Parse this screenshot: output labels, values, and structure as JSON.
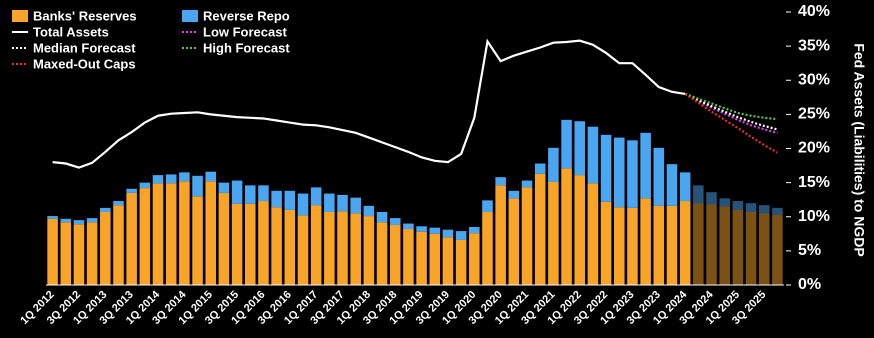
{
  "chart_data": {
    "type": "combo",
    "y_axis_label": "Fed Assets (Liabilities) to NGDP",
    "categories": [
      "1Q 2012",
      null,
      "3Q 2012",
      null,
      "1Q 2013",
      null,
      "3Q 2013",
      null,
      "1Q 2014",
      null,
      "3Q 2014",
      null,
      "1Q 2015",
      null,
      "3Q 2015",
      null,
      "1Q 2016",
      null,
      "3Q 2016",
      null,
      "1Q 2017",
      null,
      "3Q 2017",
      null,
      "1Q 2018",
      null,
      "3Q 2018",
      null,
      "1Q 2019",
      null,
      "3Q 2019",
      null,
      "1Q 2020",
      null,
      "3Q 2020",
      null,
      "1Q 2021",
      null,
      "3Q 2021",
      null,
      "1Q 2022",
      null,
      "3Q 2022",
      null,
      "1Q 2023",
      null,
      "3Q 2023",
      null,
      "1Q 2024",
      null,
      "3Q 2024",
      null,
      "1Q 2025",
      null,
      "3Q 2025",
      null
    ],
    "ylim": [
      0,
      40
    ],
    "yticks": [
      {
        "value": 0,
        "label": "0%"
      },
      {
        "value": 5,
        "label": "5%"
      },
      {
        "value": 10,
        "label": "10%"
      },
      {
        "value": 15,
        "label": "15%"
      },
      {
        "value": 20,
        "label": "20%"
      },
      {
        "value": 25,
        "label": "25%"
      },
      {
        "value": 30,
        "label": "30%"
      },
      {
        "value": 35,
        "label": "35%"
      },
      {
        "value": 40,
        "label": "40%"
      }
    ],
    "grid": false,
    "legend": "top-left",
    "series": [
      {
        "name": "Banks' Reserves",
        "type": "bar",
        "color": "#f7a428",
        "values": [
          9.7,
          9.2,
          8.9,
          9.2,
          10.7,
          11.7,
          13.5,
          14.2,
          14.9,
          14.9,
          15.2,
          13.0,
          15.2,
          13.5,
          11.9,
          11.9,
          12.3,
          11.4,
          11.0,
          10.2,
          11.7,
          10.7,
          10.8,
          10.5,
          10.1,
          9.2,
          8.8,
          8.2,
          7.8,
          7.5,
          7.0,
          6.6,
          7.6,
          10.7,
          14.6,
          12.7,
          14.3,
          16.3,
          15.1,
          17.1,
          16.1,
          14.9,
          12.2,
          11.4,
          11.3,
          12.7,
          11.6,
          11.6,
          12.3,
          12.0,
          11.8,
          11.5,
          11.0,
          10.7,
          10.5,
          10.3
        ]
      },
      {
        "name": "Reverse Repo",
        "type": "bar",
        "color": "#4ba6f2",
        "values": [
          0.4,
          0.5,
          0.6,
          0.6,
          0.6,
          0.6,
          0.6,
          0.8,
          1.2,
          1.3,
          1.3,
          3.0,
          1.4,
          1.5,
          3.4,
          2.7,
          2.3,
          2.4,
          2.8,
          3.2,
          2.6,
          2.7,
          2.4,
          2.3,
          1.5,
          1.5,
          1.0,
          0.8,
          0.8,
          0.9,
          1.1,
          1.3,
          0.9,
          1.7,
          1.2,
          1.1,
          1.0,
          1.5,
          5.0,
          7.1,
          7.9,
          8.3,
          9.8,
          10.2,
          9.9,
          9.6,
          8.5,
          6.1,
          4.2,
          2.6,
          1.8,
          1.2,
          1.3,
          1.3,
          1.2,
          1.0
        ]
      },
      {
        "name": "Total Assets",
        "type": "line",
        "color": "#ffffff",
        "dash": "none",
        "values": [
          18.0,
          17.8,
          17.2,
          17.9,
          19.5,
          21.2,
          22.4,
          23.8,
          24.8,
          25.1,
          25.2,
          25.3,
          25.0,
          24.8,
          24.6,
          24.5,
          24.4,
          24.1,
          23.8,
          23.5,
          23.4,
          23.1,
          22.7,
          22.3,
          21.6,
          20.9,
          20.2,
          19.5,
          18.7,
          18.2,
          18.0,
          19.2,
          24.5,
          35.7,
          32.8,
          33.6,
          34.2,
          34.8,
          35.5,
          35.6,
          35.8,
          35.2,
          34.0,
          32.5,
          32.5,
          30.8,
          29.0,
          28.3,
          28.0,
          null,
          null,
          null,
          null,
          null,
          null,
          null
        ]
      },
      {
        "name": "Low Forecast",
        "type": "line",
        "color": "#e040e8",
        "dash": "2 2",
        "values": [
          null,
          null,
          null,
          null,
          null,
          null,
          null,
          null,
          null,
          null,
          null,
          null,
          null,
          null,
          null,
          null,
          null,
          null,
          null,
          null,
          null,
          null,
          null,
          null,
          null,
          null,
          null,
          null,
          null,
          null,
          null,
          null,
          null,
          null,
          null,
          null,
          null,
          null,
          null,
          null,
          null,
          null,
          null,
          null,
          null,
          null,
          null,
          null,
          28.0,
          27.0,
          26.0,
          25.1,
          24.2,
          23.4,
          22.8,
          22.3
        ]
      },
      {
        "name": "Median Forecast",
        "type": "line",
        "color": "#ffffff",
        "dash": "2 2",
        "values": [
          null,
          null,
          null,
          null,
          null,
          null,
          null,
          null,
          null,
          null,
          null,
          null,
          null,
          null,
          null,
          null,
          null,
          null,
          null,
          null,
          null,
          null,
          null,
          null,
          null,
          null,
          null,
          null,
          null,
          null,
          null,
          null,
          null,
          null,
          null,
          null,
          null,
          null,
          null,
          null,
          null,
          null,
          null,
          null,
          null,
          null,
          null,
          null,
          28.0,
          27.1,
          26.2,
          25.4,
          24.6,
          23.9,
          23.3,
          22.8
        ]
      },
      {
        "name": "High Forecast",
        "type": "line",
        "color": "#5ec44a",
        "dash": "2 2",
        "values": [
          null,
          null,
          null,
          null,
          null,
          null,
          null,
          null,
          null,
          null,
          null,
          null,
          null,
          null,
          null,
          null,
          null,
          null,
          null,
          null,
          null,
          null,
          null,
          null,
          null,
          null,
          null,
          null,
          null,
          null,
          null,
          null,
          null,
          null,
          null,
          null,
          null,
          null,
          null,
          null,
          null,
          null,
          null,
          null,
          null,
          null,
          null,
          null,
          28.0,
          27.3,
          26.6,
          25.9,
          25.2,
          24.8,
          24.5,
          24.3
        ]
      },
      {
        "name": "Maxed-Out Caps",
        "type": "line",
        "color": "#e8302c",
        "dash": "2 2",
        "values": [
          null,
          null,
          null,
          null,
          null,
          null,
          null,
          null,
          null,
          null,
          null,
          null,
          null,
          null,
          null,
          null,
          null,
          null,
          null,
          null,
          null,
          null,
          null,
          null,
          null,
          null,
          null,
          null,
          null,
          null,
          null,
          null,
          null,
          null,
          null,
          null,
          null,
          null,
          null,
          null,
          null,
          null,
          null,
          null,
          null,
          null,
          null,
          null,
          28.0,
          26.7,
          25.4,
          24.2,
          23.0,
          21.7,
          20.5,
          19.4
        ]
      }
    ]
  }
}
